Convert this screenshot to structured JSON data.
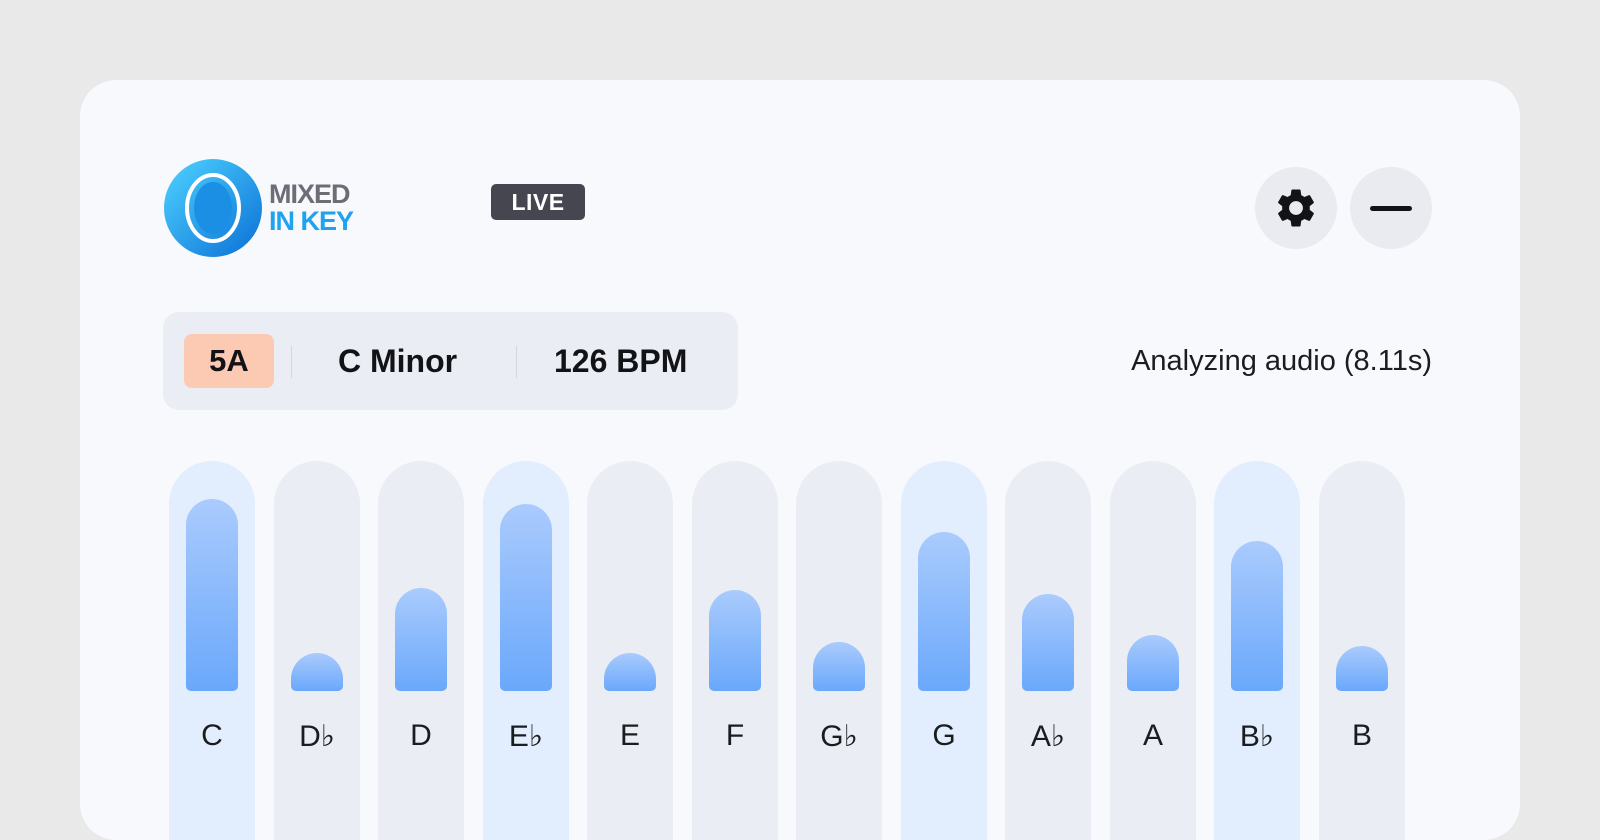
{
  "app": {
    "logo": {
      "line1": "MIXED",
      "line2": "IN KEY",
      "badge": "LIVE"
    }
  },
  "header": {
    "settings_icon": "gear-icon",
    "minimize_icon": "minus-icon"
  },
  "info": {
    "camelot_key": "5A",
    "key_name": "C Minor",
    "bpm": "126 BPM",
    "camelot_color": "#fccab3"
  },
  "status": "Analyzing audio (8.11s)",
  "chroma": {
    "notes": [
      {
        "label": "C",
        "level": 0.93,
        "highlighted": true
      },
      {
        "label": "D♭",
        "level": 0.17,
        "highlighted": false
      },
      {
        "label": "D",
        "level": 0.5,
        "highlighted": false
      },
      {
        "label": "E♭",
        "level": 0.91,
        "highlighted": true
      },
      {
        "label": "E",
        "level": 0.17,
        "highlighted": false
      },
      {
        "label": "F",
        "level": 0.49,
        "highlighted": false
      },
      {
        "label": "G♭",
        "level": 0.24,
        "highlighted": false
      },
      {
        "label": "G",
        "level": 0.77,
        "highlighted": true
      },
      {
        "label": "A♭",
        "level": 0.47,
        "highlighted": false
      },
      {
        "label": "A",
        "level": 0.27,
        "highlighted": false
      },
      {
        "label": "B♭",
        "level": 0.73,
        "highlighted": true
      },
      {
        "label": "B",
        "level": 0.22,
        "highlighted": false
      }
    ]
  }
}
